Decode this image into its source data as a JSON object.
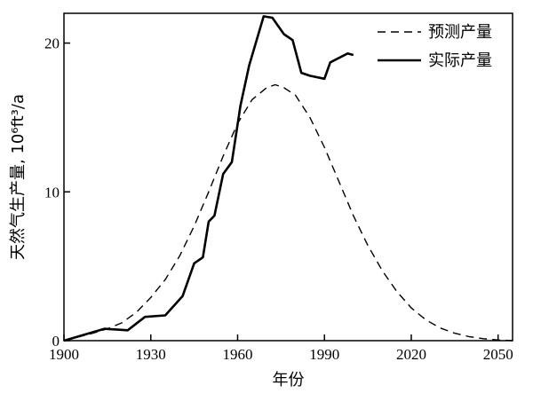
{
  "chart_data": {
    "type": "line",
    "title": "",
    "xlabel": "年份",
    "ylabel": "天然气生产量, 10⁶ft³/a",
    "xlim": [
      1900,
      2055
    ],
    "ylim": [
      0,
      22
    ],
    "x_ticks": [
      1900,
      1930,
      1960,
      1990,
      2020,
      2050
    ],
    "y_ticks": [
      0,
      10,
      20
    ],
    "grid": false,
    "legend": "top-right",
    "series": [
      {
        "name": "预测产量",
        "style": "dashed",
        "color": "#000000",
        "points": [
          [
            1900,
            0
          ],
          [
            1910,
            0.5
          ],
          [
            1915,
            0.8
          ],
          [
            1920,
            1.2
          ],
          [
            1925,
            1.9
          ],
          [
            1930,
            2.9
          ],
          [
            1935,
            4.1
          ],
          [
            1940,
            5.7
          ],
          [
            1945,
            7.7
          ],
          [
            1950,
            10.0
          ],
          [
            1955,
            12.4
          ],
          [
            1960,
            14.6
          ],
          [
            1965,
            16.2
          ],
          [
            1970,
            17.0
          ],
          [
            1973,
            17.2
          ],
          [
            1976,
            17.0
          ],
          [
            1980,
            16.5
          ],
          [
            1985,
            15.0
          ],
          [
            1990,
            13.0
          ],
          [
            1995,
            10.7
          ],
          [
            2000,
            8.4
          ],
          [
            2005,
            6.4
          ],
          [
            2010,
            4.7
          ],
          [
            2015,
            3.3
          ],
          [
            2020,
            2.2
          ],
          [
            2025,
            1.4
          ],
          [
            2030,
            0.85
          ],
          [
            2035,
            0.5
          ],
          [
            2040,
            0.27
          ],
          [
            2045,
            0.13
          ],
          [
            2050,
            0.05
          ],
          [
            2055,
            0
          ]
        ]
      },
      {
        "name": "实际产量",
        "style": "solid",
        "color": "#000000",
        "points": [
          [
            1900,
            0
          ],
          [
            1914,
            0.8
          ],
          [
            1922,
            0.7
          ],
          [
            1928,
            1.6
          ],
          [
            1935,
            1.7
          ],
          [
            1941,
            3.0
          ],
          [
            1945,
            5.2
          ],
          [
            1948,
            5.6
          ],
          [
            1950,
            8.0
          ],
          [
            1952,
            8.4
          ],
          [
            1955,
            11.2
          ],
          [
            1958,
            12.0
          ],
          [
            1961,
            15.8
          ],
          [
            1964,
            18.5
          ],
          [
            1969,
            21.8
          ],
          [
            1972,
            21.7
          ],
          [
            1976,
            20.6
          ],
          [
            1979,
            20.2
          ],
          [
            1982,
            18.0
          ],
          [
            1985,
            17.8
          ],
          [
            1990,
            17.6
          ],
          [
            1992,
            18.7
          ],
          [
            1995,
            19.0
          ],
          [
            1998,
            19.3
          ],
          [
            2000,
            19.2
          ]
        ]
      }
    ]
  }
}
